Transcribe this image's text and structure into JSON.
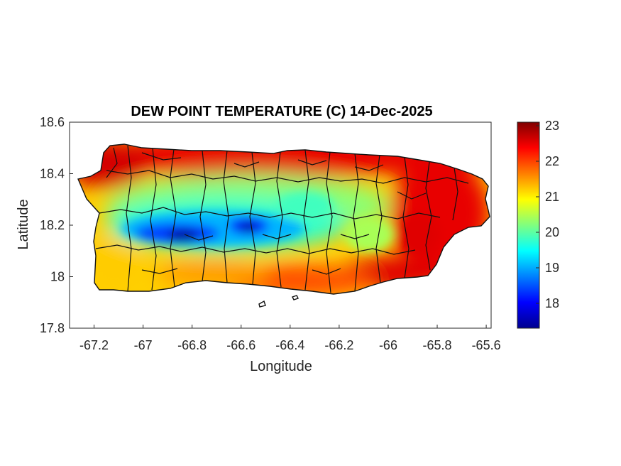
{
  "chart_data": {
    "type": "heatmap",
    "title": "DEW POINT TEMPERATURE (C) 14-Dec-2025",
    "xlabel": "Longitude",
    "ylabel": "Latitude",
    "xlim": [
      -67.3,
      -65.58
    ],
    "ylim": [
      17.8,
      18.6
    ],
    "x_ticks": [
      "-67.2",
      "-67",
      "-66.8",
      "-66.6",
      "-66.4",
      "-66.2",
      "-66",
      "-65.8",
      "-65.6"
    ],
    "y_ticks": [
      "18.6",
      "18.4",
      "18.2",
      "18",
      "17.8"
    ],
    "colorbar": {
      "colormap": "jet",
      "range": [
        17.3,
        23.1
      ],
      "ticks": [
        "23",
        "22",
        "21",
        "20",
        "19",
        "18"
      ]
    },
    "region": "Puerto Rico (municipality boundaries)",
    "field_description": {
      "north_coast": 22.5,
      "central_mountains_min": 17.6,
      "southwest_coast": 21.2,
      "south_coast": 22.3,
      "east": 22.7,
      "west_coast": 21.3
    }
  }
}
